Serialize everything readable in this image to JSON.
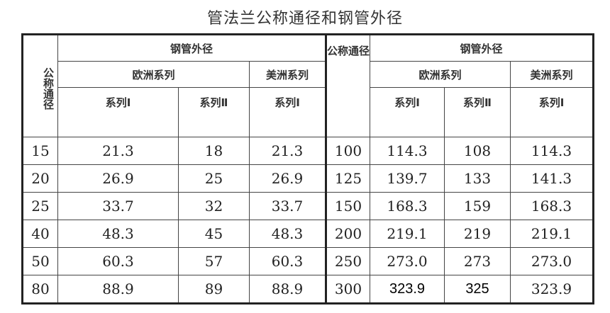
{
  "title": "管法兰公称通径和钢管外径",
  "headers": {
    "dn": "公称通径",
    "dn_right": "公称通径",
    "od": "钢管外径",
    "eu": "欧洲系列",
    "us": "美洲系列",
    "s1": "系列Ⅰ",
    "s2": "系列Ⅱ"
  },
  "rows": [
    {
      "dn": "15",
      "eu1": "21.3",
      "eu2": "18",
      "us1": "21.3",
      "dn2": "100",
      "eu1b": "114.3",
      "eu2b": "108",
      "us1b": "114.3"
    },
    {
      "dn": "20",
      "eu1": "26.9",
      "eu2": "25",
      "us1": "26.9",
      "dn2": "125",
      "eu1b": "139.7",
      "eu2b": "133",
      "us1b": "141.3"
    },
    {
      "dn": "25",
      "eu1": "33.7",
      "eu2": "32",
      "us1": "33.7",
      "dn2": "150",
      "eu1b": "168.3",
      "eu2b": "159",
      "us1b": "168.3"
    },
    {
      "dn": "40",
      "eu1": "48.3",
      "eu2": "45",
      "us1": "48.3",
      "dn2": "200",
      "eu1b": "219.1",
      "eu2b": "219",
      "us1b": "219.1"
    },
    {
      "dn": "50",
      "eu1": "60.3",
      "eu2": "57",
      "us1": "60.3",
      "dn2": "250",
      "eu1b": "273.0",
      "eu2b": "273",
      "us1b": "273.0"
    },
    {
      "dn": "80",
      "eu1": "88.9",
      "eu2": "89",
      "us1": "88.9",
      "dn2": "300",
      "eu1b": "323.9",
      "eu2b": "325",
      "us1b": "323.9"
    }
  ]
}
